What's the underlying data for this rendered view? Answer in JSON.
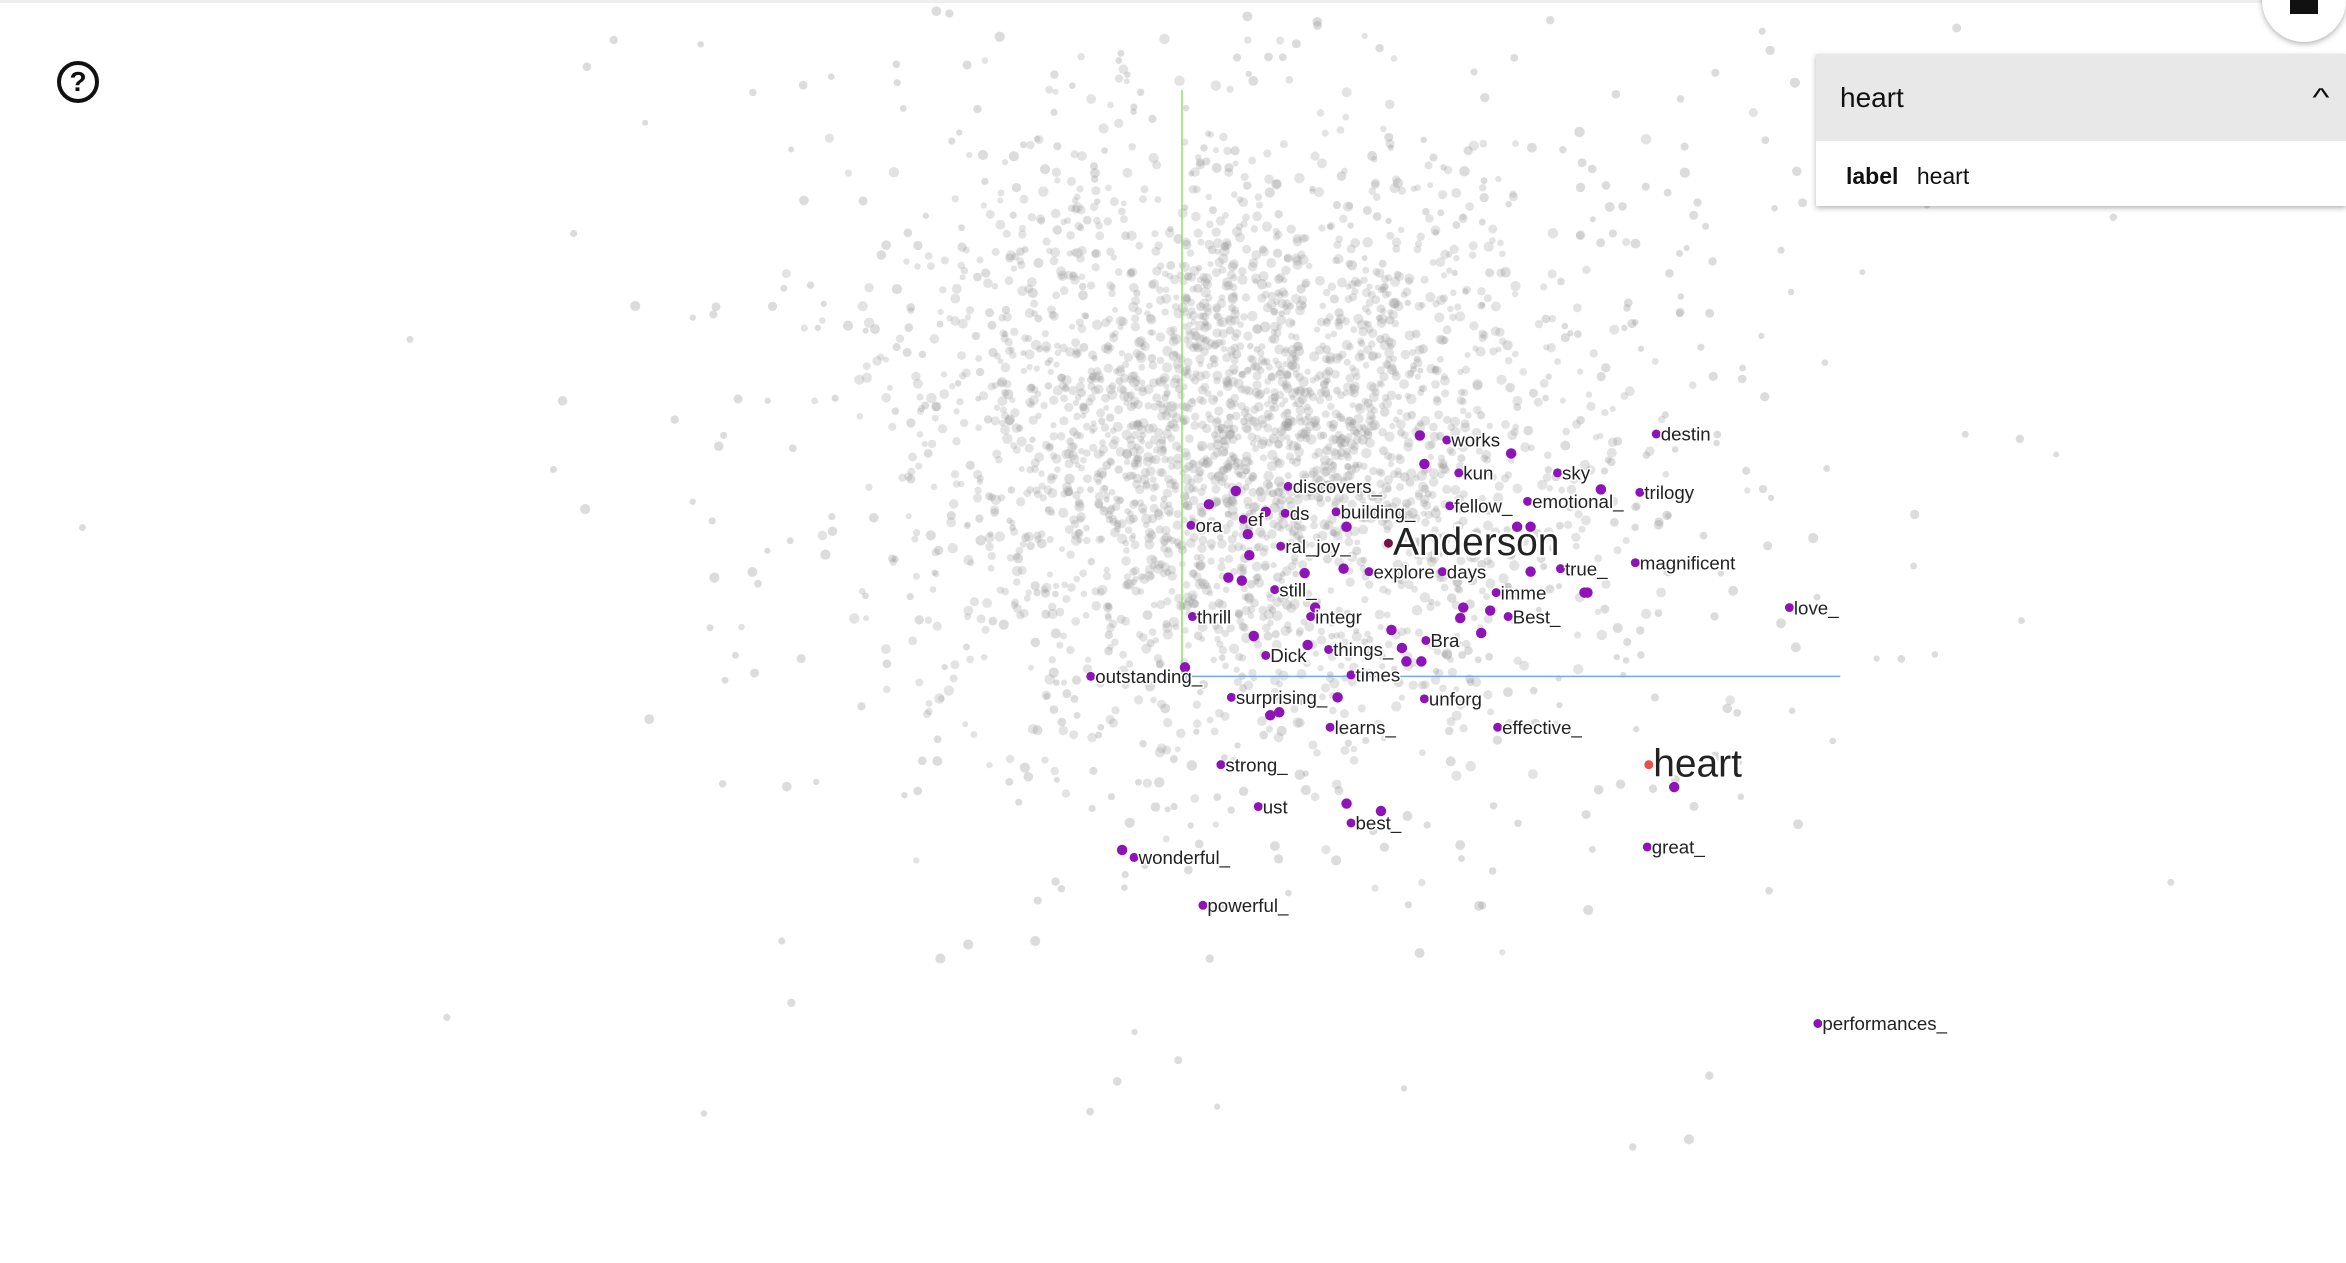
{
  "help_icon": "help-circle-icon",
  "home_icon": "home-icon",
  "inspector": {
    "title": "heart",
    "collapse_icon": "chevron-up-icon",
    "field_key": "label",
    "field_value": "heart"
  },
  "colors": {
    "highlight": "#8e14b8",
    "selected": "#e8514a",
    "background_point": "#9a9a9a",
    "axis_x": "#7aa6f0",
    "axis_y": "#8ee06a"
  },
  "points": [
    {
      "label": "destin"
    },
    {
      "label": "works"
    },
    {
      "label": "kun"
    },
    {
      "label": "sky"
    },
    {
      "label": "trilogy"
    },
    {
      "label": "discovers_"
    },
    {
      "label": "emotional_"
    },
    {
      "label": "fellow_"
    },
    {
      "label": "ds"
    },
    {
      "label": "building_"
    },
    {
      "label": "ora"
    },
    {
      "label": "ef"
    },
    {
      "label": "Anderson"
    },
    {
      "label": "ral_joy_"
    },
    {
      "label": "true_"
    },
    {
      "label": "magnificent"
    },
    {
      "label": "explore"
    },
    {
      "label": "days"
    },
    {
      "label": "still_"
    },
    {
      "label": "imme"
    },
    {
      "label": "love_"
    },
    {
      "label": "thrill"
    },
    {
      "label": "integr"
    },
    {
      "label": "Best_"
    },
    {
      "label": "Bra"
    },
    {
      "label": "things_"
    },
    {
      "label": "Dick"
    },
    {
      "label": "times"
    },
    {
      "label": "outstanding_"
    },
    {
      "label": "surprising_"
    },
    {
      "label": "unforg"
    },
    {
      "label": "learns_"
    },
    {
      "label": "effective_"
    },
    {
      "label": "heart"
    },
    {
      "label": "strong_"
    },
    {
      "label": "ust"
    },
    {
      "label": "best_"
    },
    {
      "label": "wonderful_"
    },
    {
      "label": "powerful_"
    },
    {
      "label": "great_"
    },
    {
      "label": "performances_"
    }
  ]
}
